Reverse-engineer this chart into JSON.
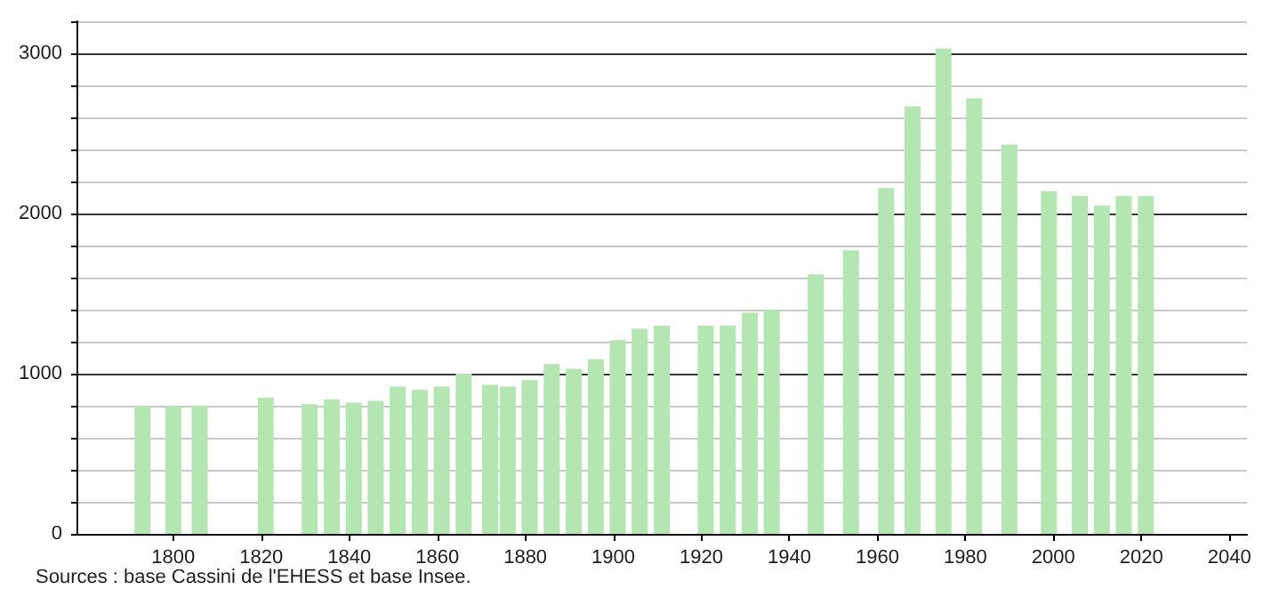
{
  "chart_data": {
    "type": "bar",
    "x": [
      1793,
      1800,
      1806,
      1821,
      1831,
      1836,
      1841,
      1846,
      1851,
      1856,
      1861,
      1866,
      1872,
      1876,
      1881,
      1886,
      1891,
      1896,
      1901,
      1906,
      1911,
      1921,
      1926,
      1931,
      1936,
      1946,
      1954,
      1962,
      1968,
      1975,
      1982,
      1990,
      1999,
      2006,
      2011,
      2016,
      2021
    ],
    "series": [
      {
        "color": "#b3e6b0",
        "values": [
          800,
          800,
          800,
          850,
          810,
          840,
          820,
          830,
          920,
          900,
          920,
          1000,
          930,
          920,
          960,
          1060,
          1030,
          1090,
          1210,
          1280,
          1300,
          1300,
          1300,
          1380,
          1400,
          1620,
          1770,
          2160,
          2670,
          3030,
          2720,
          2430,
          2140,
          2110,
          2050,
          2110,
          2110
        ]
      }
    ],
    "xlim": [
      1778,
      2044
    ],
    "xticks": [
      1800,
      1820,
      1840,
      1860,
      1880,
      1900,
      1920,
      1940,
      1960,
      1980,
      2000,
      2020,
      2040
    ],
    "ylim": [
      0,
      3200
    ],
    "yticks": [
      0,
      {
        "value": 200,
        "label": null
      },
      {
        "value": 400,
        "label": null
      },
      {
        "value": 600,
        "label": null
      },
      {
        "value": 800,
        "label": null
      },
      1000,
      {
        "value": 1200,
        "label": null
      },
      {
        "value": 1400,
        "label": null
      },
      {
        "value": 1600,
        "label": null
      },
      {
        "value": 1800,
        "label": null
      },
      2000,
      {
        "value": 2200,
        "label": null
      },
      {
        "value": 2400,
        "label": null
      },
      {
        "value": 2600,
        "label": null
      },
      {
        "value": 2800,
        "label": null
      },
      3000,
      {
        "value": 3200,
        "label": null
      }
    ],
    "grid": "y",
    "annotations": [
      "Sources : base Cassini de l'EHESS et base Insee."
    ]
  }
}
